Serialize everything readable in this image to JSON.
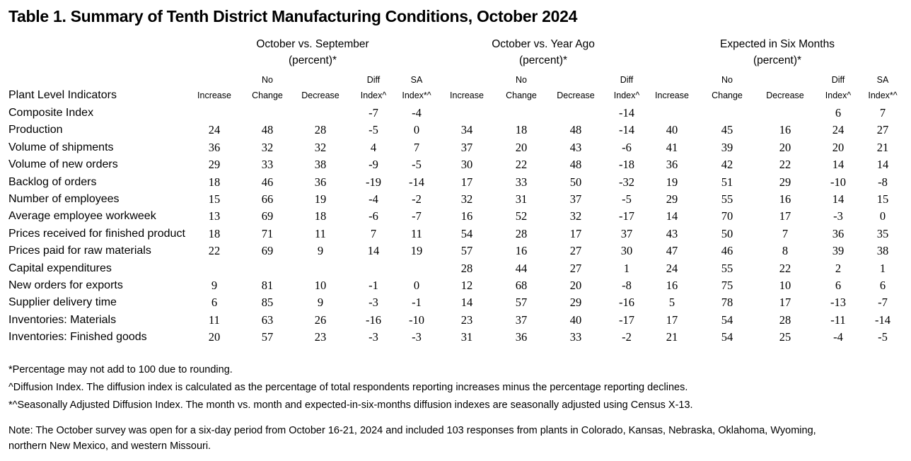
{
  "title": "Table 1. Summary of Tenth District Manufacturing Conditions, October 2024",
  "groups": [
    {
      "line1": "October vs. September",
      "line2": "(percent)*"
    },
    {
      "line1": "October vs. Year Ago",
      "line2": "(percent)*"
    },
    {
      "line1": "Expected in Six Months",
      "line2": "(percent)*"
    }
  ],
  "indicator_header": "Plant Level Indicators",
  "columns": [
    {
      "l1": "",
      "l2": "Increase"
    },
    {
      "l1": "No",
      "l2": "Change"
    },
    {
      "l1": "",
      "l2": "Decrease"
    },
    {
      "l1": "Diff",
      "l2": "Index^"
    },
    {
      "l1": "SA",
      "l2": "Index*^"
    },
    {
      "l1": "",
      "l2": "Increase"
    },
    {
      "l1": "No",
      "l2": "Change"
    },
    {
      "l1": "",
      "l2": "Decrease"
    },
    {
      "l1": "Diff",
      "l2": "Index^"
    },
    {
      "l1": "",
      "l2": "Increase"
    },
    {
      "l1": "No",
      "l2": "Change"
    },
    {
      "l1": "",
      "l2": "Decrease"
    },
    {
      "l1": "Diff",
      "l2": "Index^"
    },
    {
      "l1": "SA",
      "l2": "Index*^"
    }
  ],
  "rows": [
    {
      "label": "Composite Index",
      "values": [
        "",
        "",
        "",
        "-7",
        "-4",
        "",
        "",
        "",
        "-14",
        "",
        "",
        "",
        "6",
        "7"
      ]
    },
    {
      "label": "Production",
      "values": [
        "24",
        "48",
        "28",
        "-5",
        "0",
        "34",
        "18",
        "48",
        "-14",
        "40",
        "45",
        "16",
        "24",
        "27"
      ]
    },
    {
      "label": "Volume of shipments",
      "values": [
        "36",
        "32",
        "32",
        "4",
        "7",
        "37",
        "20",
        "43",
        "-6",
        "41",
        "39",
        "20",
        "20",
        "21"
      ]
    },
    {
      "label": "Volume of new orders",
      "values": [
        "29",
        "33",
        "38",
        "-9",
        "-5",
        "30",
        "22",
        "48",
        "-18",
        "36",
        "42",
        "22",
        "14",
        "14"
      ]
    },
    {
      "label": "Backlog of orders",
      "values": [
        "18",
        "46",
        "36",
        "-19",
        "-14",
        "17",
        "33",
        "50",
        "-32",
        "19",
        "51",
        "29",
        "-10",
        "-8"
      ]
    },
    {
      "label": "Number of employees",
      "values": [
        "15",
        "66",
        "19",
        "-4",
        "-2",
        "32",
        "31",
        "37",
        "-5",
        "29",
        "55",
        "16",
        "14",
        "15"
      ]
    },
    {
      "label": "Average employee workweek",
      "values": [
        "13",
        "69",
        "18",
        "-6",
        "-7",
        "16",
        "52",
        "32",
        "-17",
        "14",
        "70",
        "17",
        "-3",
        "0"
      ]
    },
    {
      "label": "Prices received for finished product",
      "values": [
        "18",
        "71",
        "11",
        "7",
        "11",
        "54",
        "28",
        "17",
        "37",
        "43",
        "50",
        "7",
        "36",
        "35"
      ]
    },
    {
      "label": "Prices paid for raw materials",
      "values": [
        "22",
        "69",
        "9",
        "14",
        "19",
        "57",
        "16",
        "27",
        "30",
        "47",
        "46",
        "8",
        "39",
        "38"
      ]
    },
    {
      "label": "Capital expenditures",
      "values": [
        "",
        "",
        "",
        "",
        "",
        "28",
        "44",
        "27",
        "1",
        "24",
        "55",
        "22",
        "2",
        "1"
      ]
    },
    {
      "label": "New orders for exports",
      "values": [
        "9",
        "81",
        "10",
        "-1",
        "0",
        "12",
        "68",
        "20",
        "-8",
        "16",
        "75",
        "10",
        "6",
        "6"
      ]
    },
    {
      "label": "Supplier delivery time",
      "values": [
        "6",
        "85",
        "9",
        "-3",
        "-1",
        "14",
        "57",
        "29",
        "-16",
        "5",
        "78",
        "17",
        "-13",
        "-7"
      ]
    },
    {
      "label": "Inventories: Materials",
      "values": [
        "11",
        "63",
        "26",
        "-16",
        "-10",
        "23",
        "37",
        "40",
        "-17",
        "17",
        "54",
        "28",
        "-11",
        "-14"
      ]
    },
    {
      "label": "Inventories: Finished goods",
      "values": [
        "20",
        "57",
        "23",
        "-3",
        "-3",
        "31",
        "36",
        "33",
        "-2",
        "21",
        "54",
        "25",
        "-4",
        "-5"
      ]
    }
  ],
  "footnotes": [
    "*Percentage may not add to 100 due to rounding.",
    "^Diffusion Index. The diffusion index is calculated as the percentage of total respondents reporting increases minus the percentage reporting declines.",
    "*^Seasonally Adjusted Diffusion Index. The month vs. month and expected-in-six-months diffusion indexes are seasonally adjusted using Census X-13."
  ],
  "note": [
    "Note: The October survey was open for a six-day period from October 16-21, 2024 and included 103 responses from plants in Colorado, Kansas, Nebraska, Oklahoma, Wyoming,",
    "northern New Mexico, and western Missouri."
  ]
}
